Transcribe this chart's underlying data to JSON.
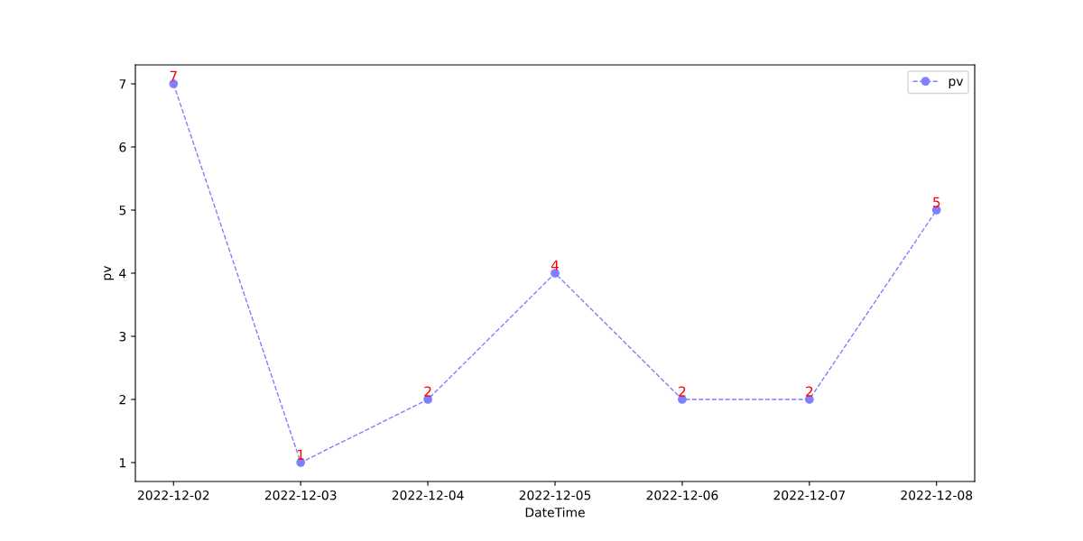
{
  "chart_data": {
    "type": "line",
    "xlabel": "DateTime",
    "ylabel": "pv",
    "categories": [
      "2022-12-02",
      "2022-12-03",
      "2022-12-04",
      "2022-12-05",
      "2022-12-06",
      "2022-12-07",
      "2022-12-08"
    ],
    "series": [
      {
        "name": "pv",
        "color": "#7f7fff",
        "values": [
          7,
          1,
          2,
          4,
          2,
          2,
          5
        ]
      }
    ],
    "ylim": [
      0.7,
      7.3
    ],
    "yticks": [
      1,
      2,
      3,
      4,
      5,
      6,
      7
    ],
    "data_labels": true,
    "grid": false,
    "legend": "top right",
    "marker": "circle",
    "line_style": "dashed"
  }
}
